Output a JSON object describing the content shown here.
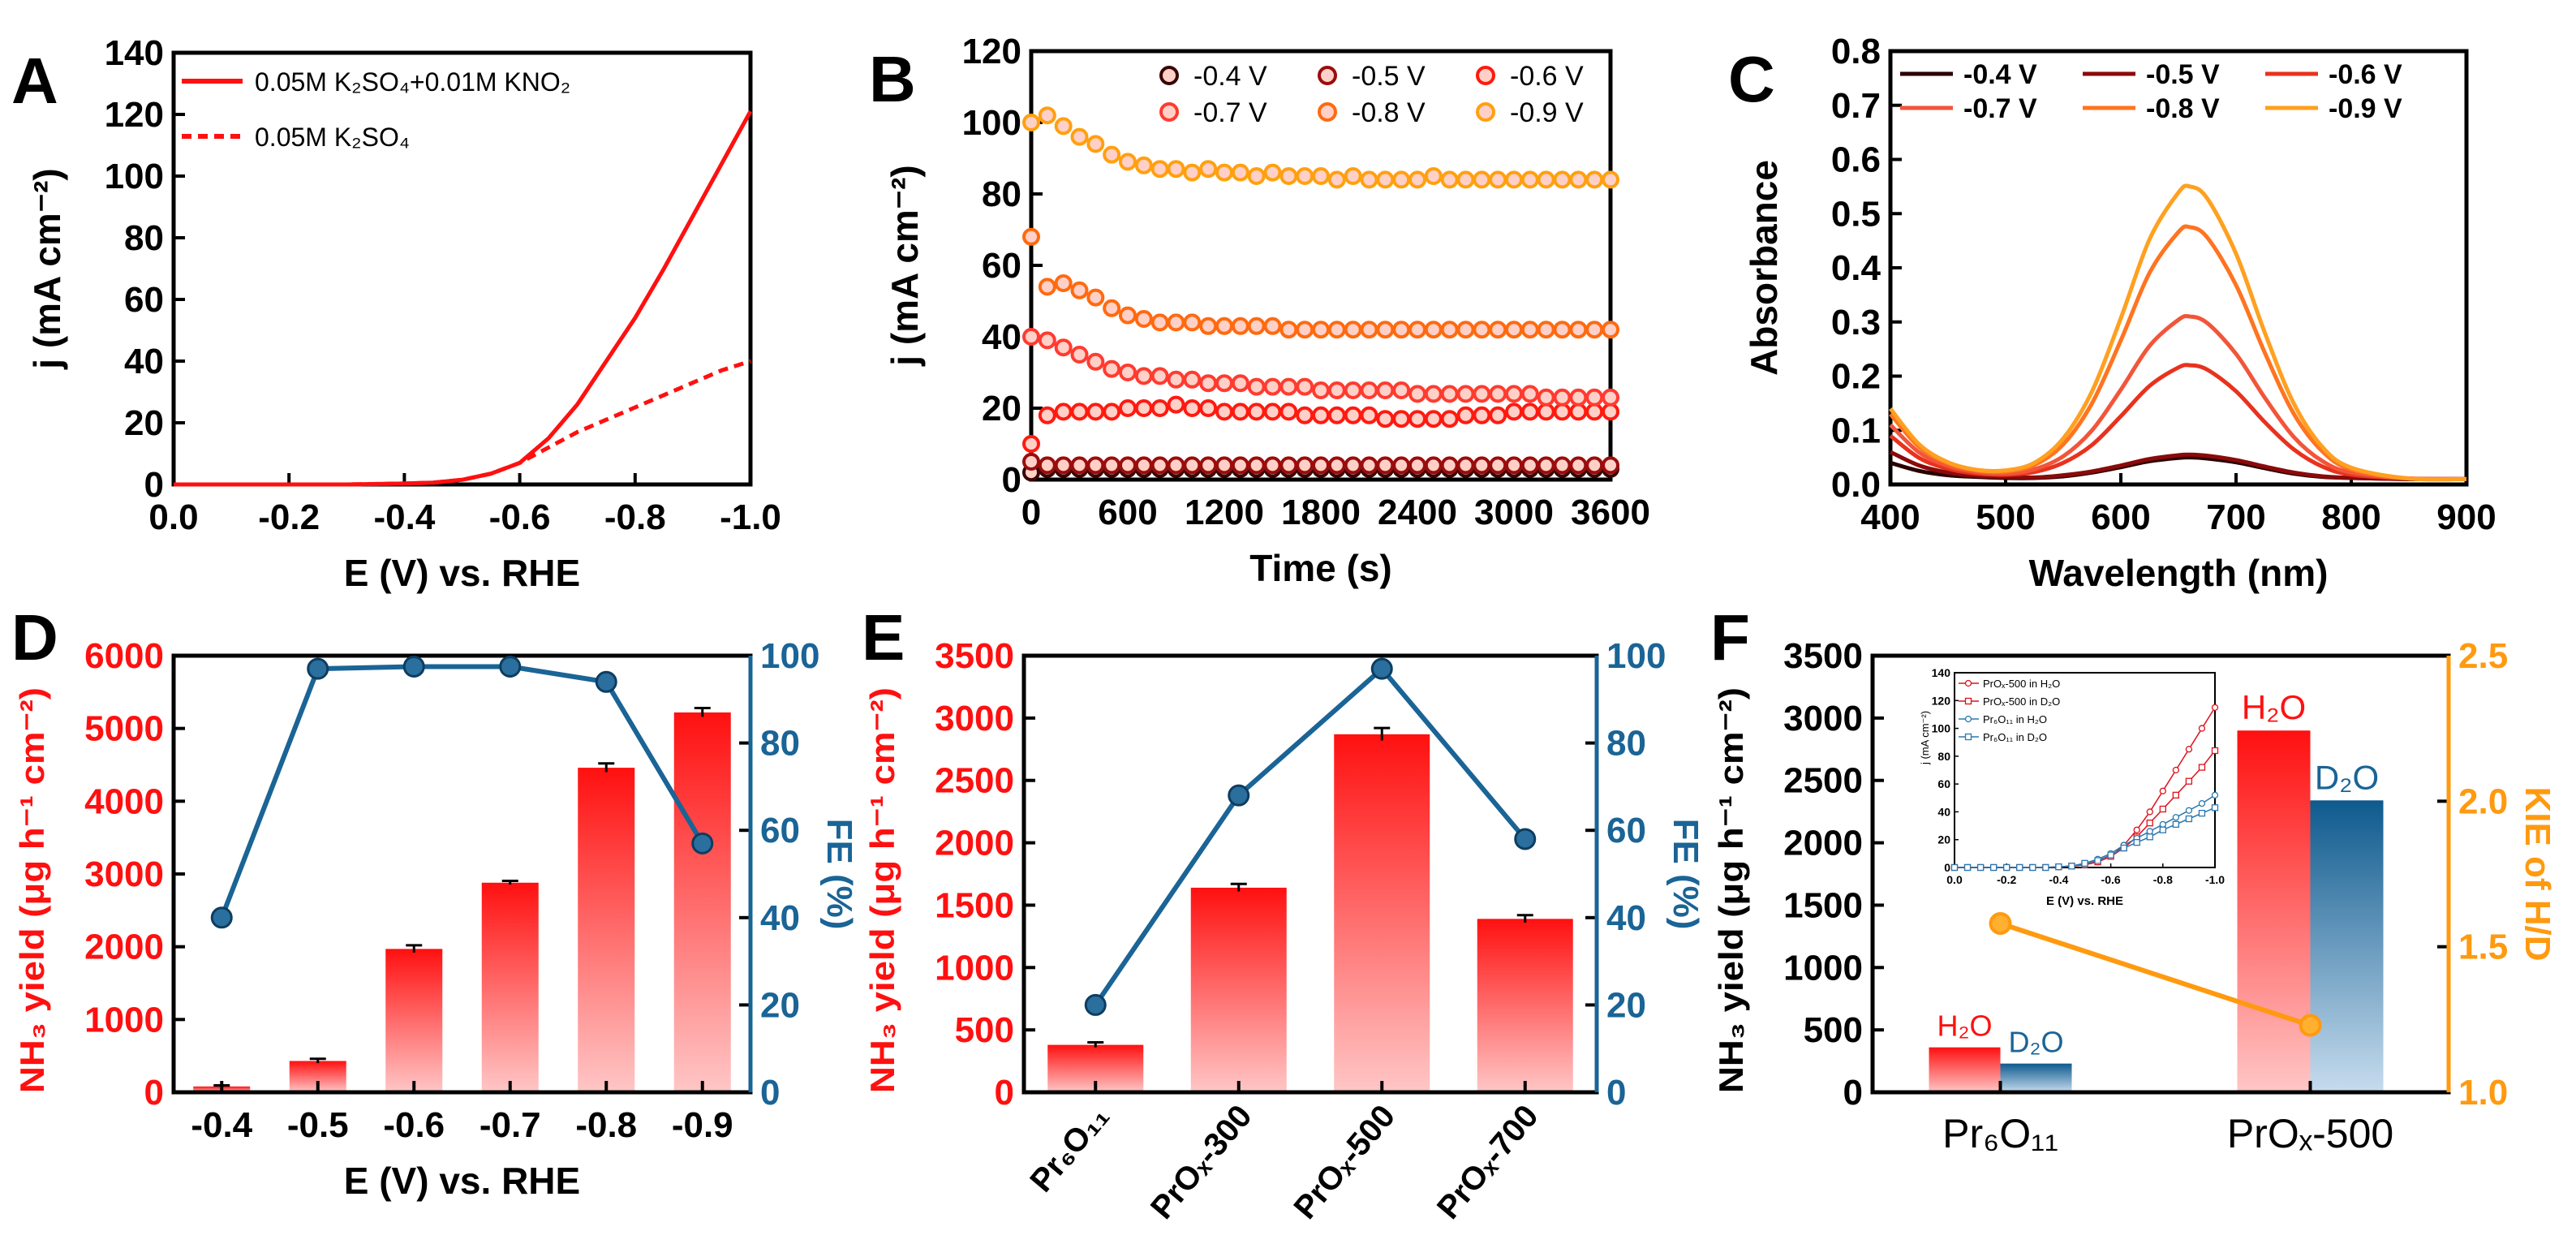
{
  "chart_data": [
    {
      "panel": "A",
      "type": "line",
      "xlabel": "E (V) vs. RHE",
      "ylabel": "j (mA cm⁻²)",
      "xlim": [
        0,
        -1.0
      ],
      "ylim": [
        0,
        140
      ],
      "xticks": [
        "0.0",
        "-0.2",
        "-0.4",
        "-0.6",
        "-0.8",
        "-1.0"
      ],
      "yticks": [
        "0",
        "20",
        "40",
        "60",
        "80",
        "100",
        "120",
        "140"
      ],
      "x": [
        0,
        -0.1,
        -0.2,
        -0.3,
        -0.4,
        -0.45,
        -0.5,
        -0.55,
        -0.6,
        -0.65,
        -0.7,
        -0.75,
        -0.8,
        -0.85,
        -0.9,
        -0.95,
        -1.0
      ],
      "series": [
        {
          "name": "0.05M K₂SO₄+0.01M KNO₂",
          "style": "solid",
          "color": "#ff1010",
          "values": [
            0,
            0,
            0,
            0,
            0.3,
            0.6,
            1.5,
            3.5,
            7,
            15,
            26,
            40,
            54,
            70,
            87,
            104,
            121
          ]
        },
        {
          "name": "0.05M K₂SO₄",
          "style": "dashed",
          "color": "#ff1010",
          "values": [
            0,
            0,
            0,
            0,
            0.3,
            0.6,
            1.5,
            3.5,
            7,
            12,
            17,
            21,
            25,
            29,
            33,
            37,
            40
          ]
        }
      ],
      "legend": "top-left"
    },
    {
      "panel": "B",
      "type": "scatter",
      "xlabel": "Time (s)",
      "ylabel": "j (mA cm⁻²)",
      "xlim": [
        0,
        3600
      ],
      "ylim": [
        0,
        120
      ],
      "xticks": [
        "0",
        "600",
        "1200",
        "1800",
        "2400",
        "3000",
        "3600"
      ],
      "yticks": [
        "0",
        "20",
        "40",
        "60",
        "80",
        "100",
        "120"
      ],
      "x_start": 0,
      "x_step": 100,
      "series": [
        {
          "name": "-0.4 V",
          "color": "#3a0505",
          "values": [
            2,
            3,
            3,
            3,
            3,
            3,
            3,
            3,
            3,
            3,
            3,
            3,
            3,
            3,
            3,
            3,
            3,
            3,
            3,
            3,
            3,
            3,
            3,
            3,
            3,
            3,
            3,
            3,
            3,
            3,
            3,
            3,
            3,
            3,
            3,
            3,
            3
          ]
        },
        {
          "name": "-0.5 V",
          "color": "#9a0d0d",
          "values": [
            5,
            4,
            4,
            4,
            4,
            4,
            4,
            4,
            4,
            4,
            4,
            4,
            4,
            4,
            4,
            4,
            4,
            4,
            4,
            4,
            4,
            4,
            4,
            4,
            4,
            4,
            4,
            4,
            4,
            4,
            4,
            4,
            4,
            4,
            4,
            4,
            4
          ]
        },
        {
          "name": "-0.6 V",
          "color": "#ff1a10",
          "values": [
            10,
            18,
            19,
            19,
            19,
            19,
            20,
            20,
            20,
            21,
            20,
            20,
            19,
            19,
            19,
            19,
            19,
            18,
            18,
            18,
            18,
            18,
            17,
            17,
            17,
            17,
            17,
            18,
            18,
            18,
            19,
            19,
            19,
            19,
            19,
            19,
            19
          ]
        },
        {
          "name": "-0.7 V",
          "color": "#ff3b30",
          "values": [
            40,
            39,
            37,
            35,
            33,
            31,
            30,
            29,
            29,
            28,
            28,
            27,
            27,
            27,
            26,
            26,
            26,
            26,
            25,
            25,
            25,
            25,
            25,
            25,
            24,
            24,
            24,
            24,
            24,
            24,
            24,
            24,
            23,
            23,
            23,
            23,
            23
          ]
        },
        {
          "name": "-0.8 V",
          "color": "#ff6a10",
          "values": [
            68,
            54,
            55,
            53,
            51,
            48,
            46,
            45,
            44,
            44,
            44,
            43,
            43,
            43,
            43,
            43,
            42,
            42,
            42,
            42,
            42,
            42,
            42,
            42,
            42,
            42,
            42,
            42,
            42,
            42,
            42,
            42,
            42,
            42,
            42,
            42,
            42
          ]
        },
        {
          "name": "-0.9 V",
          "color": "#ffa010",
          "values": [
            100,
            102,
            99,
            96,
            94,
            91,
            89,
            88,
            87,
            87,
            86,
            87,
            86,
            86,
            85,
            86,
            85,
            85,
            85,
            84,
            85,
            84,
            84,
            84,
            84,
            85,
            84,
            84,
            84,
            84,
            84,
            84,
            84,
            84,
            84,
            84,
            84
          ]
        }
      ],
      "legend": "top-right"
    },
    {
      "panel": "C",
      "type": "line",
      "xlabel": "Wavelength (nm)",
      "ylabel": "Absorbance",
      "xlim": [
        400,
        900
      ],
      "ylim": [
        0,
        0.8
      ],
      "xticks": [
        "400",
        "500",
        "600",
        "700",
        "800",
        "900"
      ],
      "yticks": [
        "0.0",
        "0.1",
        "0.2",
        "0.3",
        "0.4",
        "0.5",
        "0.6",
        "0.7",
        "0.8"
      ],
      "x": [
        400,
        425,
        450,
        475,
        500,
        525,
        550,
        575,
        600,
        625,
        650,
        660,
        675,
        700,
        725,
        750,
        775,
        800,
        850,
        900
      ],
      "series": [
        {
          "name": "-0.4 V",
          "color": "#2a0000",
          "values": [
            0.04,
            0.025,
            0.017,
            0.014,
            0.012,
            0.012,
            0.015,
            0.022,
            0.032,
            0.043,
            0.049,
            0.05,
            0.048,
            0.041,
            0.03,
            0.02,
            0.014,
            0.012,
            0.01,
            0.01
          ]
        },
        {
          "name": "-0.5 V",
          "color": "#8b0a0a",
          "values": [
            0.06,
            0.035,
            0.022,
            0.016,
            0.014,
            0.013,
            0.017,
            0.024,
            0.035,
            0.047,
            0.054,
            0.055,
            0.053,
            0.045,
            0.033,
            0.022,
            0.015,
            0.012,
            0.01,
            0.01
          ]
        },
        {
          "name": "-0.6 V",
          "color": "#e8321e",
          "values": [
            0.09,
            0.049,
            0.029,
            0.02,
            0.018,
            0.023,
            0.04,
            0.073,
            0.126,
            0.182,
            0.216,
            0.22,
            0.212,
            0.172,
            0.115,
            0.065,
            0.033,
            0.018,
            0.011,
            0.01
          ]
        },
        {
          "name": "-0.7 V",
          "color": "#f2553a",
          "values": [
            0.11,
            0.059,
            0.034,
            0.023,
            0.02,
            0.028,
            0.052,
            0.1,
            0.175,
            0.256,
            0.304,
            0.31,
            0.298,
            0.241,
            0.16,
            0.088,
            0.043,
            0.022,
            0.011,
            0.01
          ]
        },
        {
          "name": "-0.8 V",
          "color": "#ff7420",
          "values": [
            0.13,
            0.069,
            0.039,
            0.026,
            0.024,
            0.036,
            0.074,
            0.15,
            0.266,
            0.391,
            0.466,
            0.475,
            0.456,
            0.368,
            0.243,
            0.131,
            0.061,
            0.028,
            0.011,
            0.01
          ]
        },
        {
          "name": "-0.9 V",
          "color": "#ffa020",
          "values": [
            0.14,
            0.074,
            0.041,
            0.027,
            0.026,
            0.04,
            0.085,
            0.172,
            0.307,
            0.453,
            0.539,
            0.55,
            0.528,
            0.426,
            0.28,
            0.15,
            0.069,
            0.031,
            0.011,
            0.01
          ]
        }
      ],
      "legend": "top-left"
    },
    {
      "panel": "D",
      "type": "bar",
      "xlabel": "E (V) vs. RHE",
      "ylabel": "NH₃ yield (μg h⁻¹ cm⁻²)",
      "y2label": "FE (%)",
      "categories": [
        "-0.4",
        "-0.5",
        "-0.6",
        "-0.7",
        "-0.8",
        "-0.9"
      ],
      "ylim": [
        0,
        6000
      ],
      "y2lim": [
        0,
        100
      ],
      "yticks": [
        "0",
        "1000",
        "2000",
        "3000",
        "4000",
        "5000",
        "6000"
      ],
      "y2ticks": [
        "0",
        "20",
        "40",
        "60",
        "80",
        "100"
      ],
      "ycolor": "#ff1010",
      "y2color": "#1a6496",
      "values": [
        80,
        430,
        1970,
        2880,
        4460,
        5220
      ],
      "errors": [
        15,
        30,
        50,
        25,
        60,
        60
      ],
      "fe": [
        40,
        97,
        97.5,
        97.5,
        94,
        57
      ]
    },
    {
      "panel": "E",
      "type": "bar",
      "xlabel": "",
      "ylabel": "NH₃ yield (μg h⁻¹ cm⁻²)",
      "y2label": "FE (%)",
      "categories": [
        "Pr₆O₁₁",
        "PrOₓ-300",
        "PrOₓ-500",
        "PrOₓ-700"
      ],
      "ylim": [
        0,
        3500
      ],
      "y2lim": [
        0,
        100
      ],
      "yticks": [
        "0",
        "500",
        "1000",
        "1500",
        "2000",
        "2500",
        "3000",
        "3500"
      ],
      "y2ticks": [
        "0",
        "20",
        "40",
        "60",
        "80",
        "100"
      ],
      "ycolor": "#ff1010",
      "y2color": "#1a6496",
      "values": [
        380,
        1640,
        2870,
        1390
      ],
      "errors": [
        20,
        30,
        50,
        30
      ],
      "fe": [
        20,
        68,
        97,
        58
      ]
    },
    {
      "panel": "F",
      "type": "bar",
      "xlabel": "",
      "ylabel": "NH₃ yield (μg h⁻¹ cm⁻²)",
      "y2label": "KIE of H/D",
      "categories": [
        "Pr₆O₁₁",
        "PrOₓ-500"
      ],
      "ylim": [
        0,
        3500
      ],
      "y2lim": [
        1.0,
        2.5
      ],
      "yticks": [
        "0",
        "500",
        "1000",
        "1500",
        "2000",
        "2500",
        "3000",
        "3500"
      ],
      "y2ticks": [
        "1.0",
        "1.5",
        "2.0",
        "2.5"
      ],
      "ycolor": "#000000",
      "y2color": "#ff9a10",
      "series": [
        {
          "name": "H₂O",
          "color": "#ff1010",
          "values": [
            360,
            2900
          ]
        },
        {
          "name": "D₂O",
          "color": "#1a6496",
          "values": [
            230,
            2340
          ]
        }
      ],
      "kie": [
        1.58,
        1.23
      ],
      "inset": {
        "xlabel": "E (V) vs. RHE",
        "ylabel": "j (mA cm⁻²)",
        "xlim": [
          0,
          -1.0
        ],
        "ylim": [
          0,
          140
        ],
        "xticks": [
          "0.0",
          "-0.2",
          "-0.4",
          "-0.6",
          "-0.8",
          "-1.0"
        ],
        "yticks": [
          "0",
          "20",
          "40",
          "60",
          "80",
          "100",
          "120",
          "140"
        ],
        "x_start": 0,
        "x_step": -0.05,
        "series": [
          {
            "name": "PrOₓ-500 in H₂O",
            "color": "#e0101a",
            "marker": "circle",
            "values": [
              0,
              0,
              0,
              0,
              0,
              0,
              0,
              0,
              0.5,
              1,
              2,
              4,
              8,
              16,
              27,
              40,
              55,
              70,
              85,
              100,
              115
            ]
          },
          {
            "name": "PrOₓ-500 in D₂O",
            "color": "#e0101a",
            "marker": "square",
            "values": [
              0,
              0,
              0,
              0,
              0,
              0,
              0,
              0,
              0.5,
              1,
              2,
              4,
              8,
              14,
              22,
              32,
              42,
              52,
              62,
              72,
              84
            ]
          },
          {
            "name": "Pr₆O₁₁ in H₂O",
            "color": "#2a78b0",
            "marker": "circle",
            "values": [
              0,
              0,
              0,
              0,
              0,
              0,
              0,
              0,
              0.5,
              1,
              3,
              6,
              10,
              16,
              21,
              26,
              31,
              36,
              41,
              46,
              52
            ]
          },
          {
            "name": "Pr₆O₁₁ in D₂O",
            "color": "#2a78b0",
            "marker": "square",
            "values": [
              0,
              0,
              0,
              0,
              0,
              0,
              0,
              0,
              0.5,
              1,
              3,
              5,
              9,
              14,
              18,
              22,
              27,
              31,
              35,
              39,
              43
            ]
          }
        ]
      }
    }
  ]
}
